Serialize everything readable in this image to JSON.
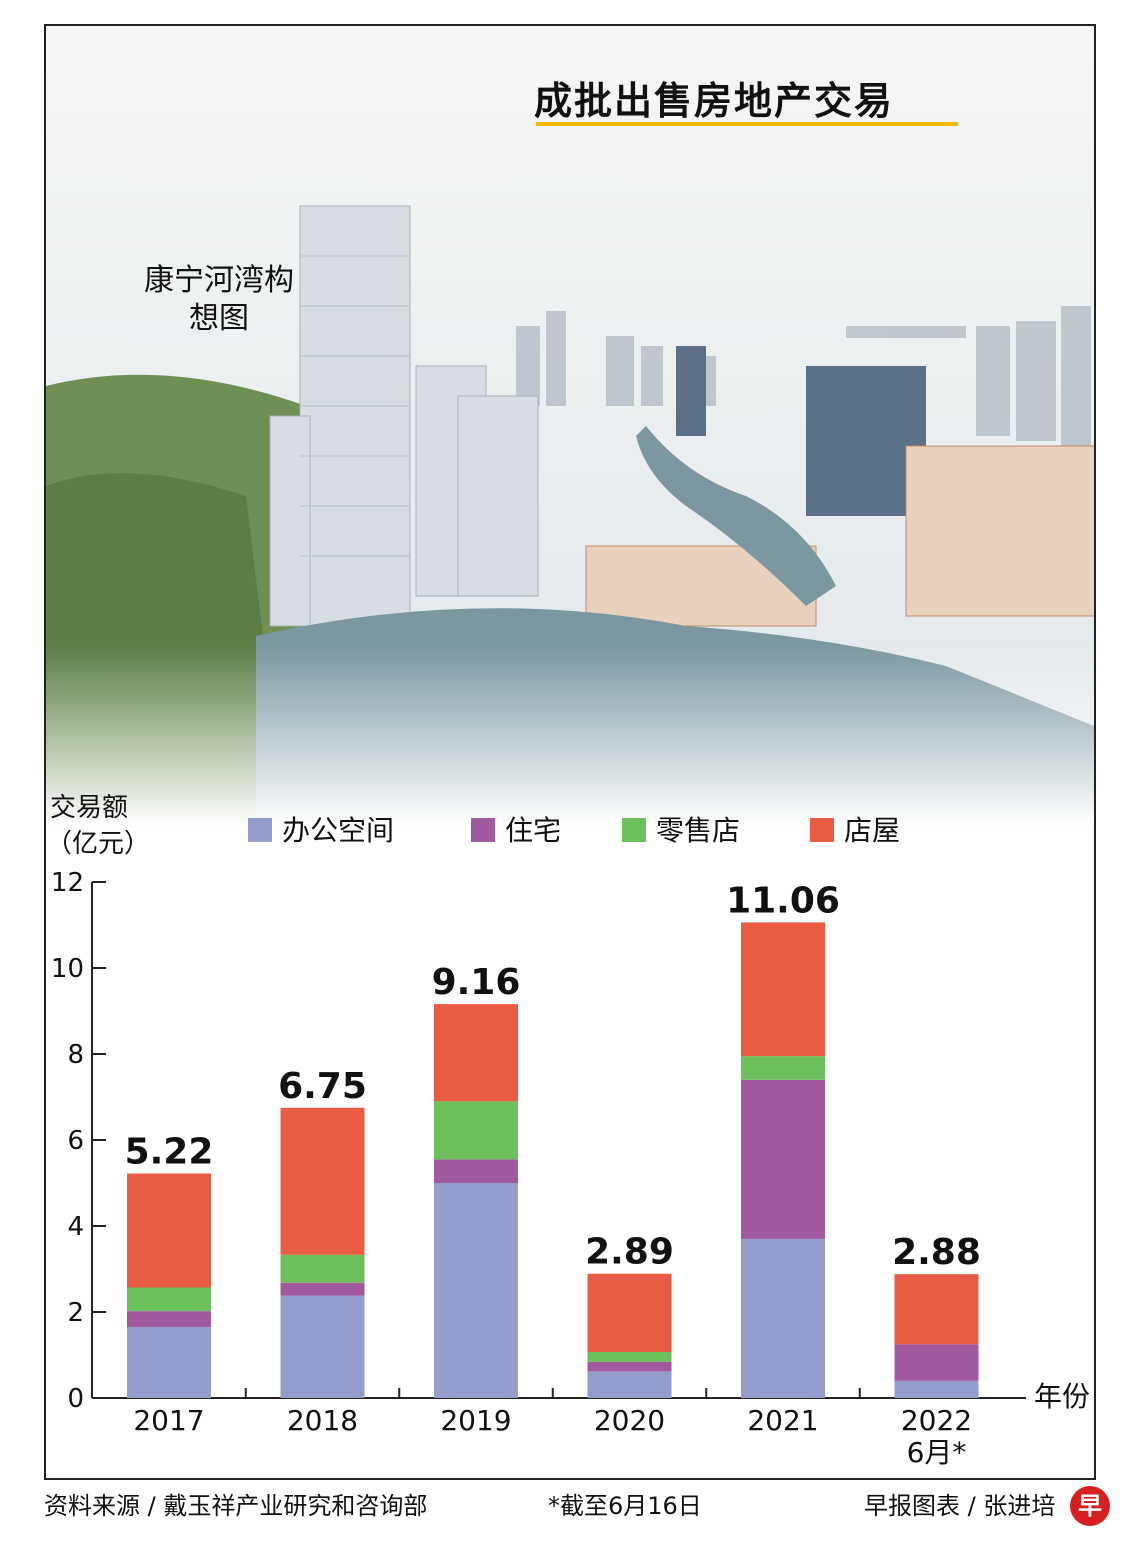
{
  "title": "成批出售房地产交易",
  "caption": "康宁河湾构想图",
  "footer": {
    "source": "资料来源 / 戴玉祥产业研究和咨询部",
    "note": "*截至6月16日",
    "credit": "早报图表 / 张进培",
    "badge": "早"
  },
  "colors": {
    "office": "#939ccb",
    "residential": "#a15aa0",
    "retail": "#6cbf5a",
    "shophouse": "#e95c43"
  },
  "chart_data": {
    "type": "bar",
    "stacked": true,
    "title": "成批出售房地产交易",
    "ylabel": "交易额（亿元）",
    "xlabel": "年份",
    "ylim": [
      0,
      12
    ],
    "yticks": [
      0,
      2,
      4,
      6,
      8,
      10,
      12
    ],
    "categories": [
      "2017",
      "2018",
      "2019",
      "2020",
      "2021",
      "2022"
    ],
    "category_sublabels": [
      "",
      "",
      "",
      "",
      "",
      "6月*"
    ],
    "totals": [
      "5.22",
      "6.75",
      "9.16",
      "2.89",
      "11.06",
      "2.88"
    ],
    "series": [
      {
        "name": "办公空间",
        "key": "office",
        "values": [
          1.65,
          2.38,
          5.0,
          0.62,
          3.7,
          0.4
        ]
      },
      {
        "name": "住宅",
        "key": "residential",
        "values": [
          0.37,
          0.3,
          0.55,
          0.22,
          3.7,
          0.85
        ]
      },
      {
        "name": "零售店",
        "key": "retail",
        "values": [
          0.55,
          0.65,
          1.35,
          0.23,
          0.55,
          0.0
        ]
      },
      {
        "name": "店屋",
        "key": "shophouse",
        "values": [
          2.65,
          3.42,
          2.26,
          1.82,
          3.11,
          1.63
        ]
      }
    ]
  }
}
